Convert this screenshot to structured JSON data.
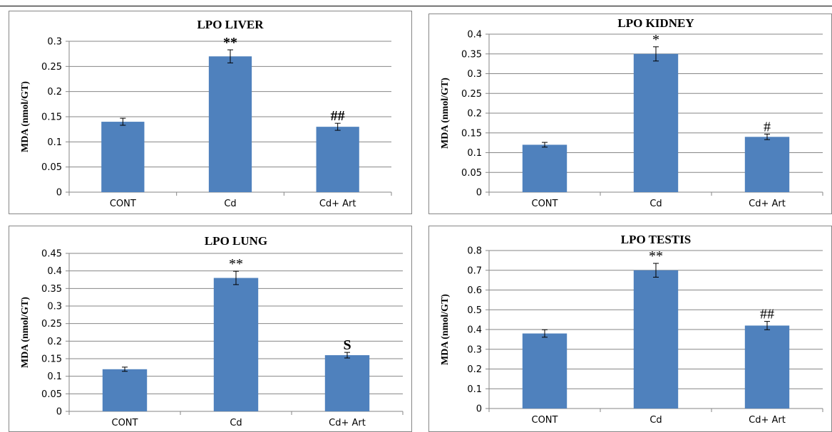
{
  "colors": {
    "bar": "#4F81BD",
    "grid": "#868686",
    "axis": "#868686",
    "error": "#000000"
  },
  "chart_data": [
    {
      "type": "bar",
      "title": "LPO  LIVER",
      "ylabel": "MDA (nmol/GT)",
      "xlabel": "",
      "categories": [
        "CONT",
        "Cd",
        "Cd+ Art"
      ],
      "values": [
        0.14,
        0.27,
        0.13
      ],
      "errors": [
        0.007,
        0.013,
        0.007
      ],
      "annotations": [
        "",
        "**",
        "##"
      ],
      "ylim": [
        0,
        0.3
      ],
      "yticks": [
        "0",
        "0.05",
        "0.1",
        "0.15",
        "0.2",
        "0.25",
        "0.3"
      ],
      "grid": true,
      "legend": "none"
    },
    {
      "type": "bar",
      "title": "LPO KIDNEY",
      "ylabel": "MDA (nmol/GT)",
      "xlabel": "",
      "categories": [
        "CONT",
        "Cd",
        "Cd+ Art"
      ],
      "values": [
        0.12,
        0.35,
        0.14
      ],
      "errors": [
        0.006,
        0.018,
        0.007
      ],
      "annotations": [
        "",
        "*",
        "#"
      ],
      "ylim": [
        0,
        0.4
      ],
      "yticks": [
        "0",
        "0.05",
        "0.1",
        "0.15",
        "0.2",
        "0.25",
        "0.3",
        "0.35",
        "0.4"
      ],
      "grid": true,
      "legend": "none"
    },
    {
      "type": "bar",
      "title": "LPO LUNG",
      "ylabel": "MDA (nmol/GT)",
      "xlabel": "",
      "categories": [
        "CONT",
        "Cd",
        "Cd+ Art"
      ],
      "values": [
        0.12,
        0.38,
        0.16
      ],
      "errors": [
        0.006,
        0.019,
        0.008
      ],
      "annotations": [
        "",
        "**",
        "S"
      ],
      "ylim": [
        0,
        0.45
      ],
      "yticks": [
        "0",
        "0.05",
        "0.1",
        "0.15",
        "0.2",
        "0.25",
        "0.3",
        "0.35",
        "0.4",
        "0.45"
      ],
      "grid": true,
      "legend": "none"
    },
    {
      "type": "bar",
      "title": "LPO TESTIS",
      "ylabel": "MDA (nmol/GT)",
      "xlabel": "",
      "categories": [
        "CONT",
        "Cd",
        "Cd+ Art"
      ],
      "values": [
        0.38,
        0.7,
        0.42
      ],
      "errors": [
        0.019,
        0.035,
        0.021
      ],
      "annotations": [
        "",
        "**",
        "##"
      ],
      "ylim": [
        0,
        0.8
      ],
      "yticks": [
        "0",
        "0.1",
        "0.2",
        "0.3",
        "0.4",
        "0.5",
        "0.6",
        "0.7",
        "0.8"
      ],
      "grid": true,
      "legend": "none"
    }
  ]
}
